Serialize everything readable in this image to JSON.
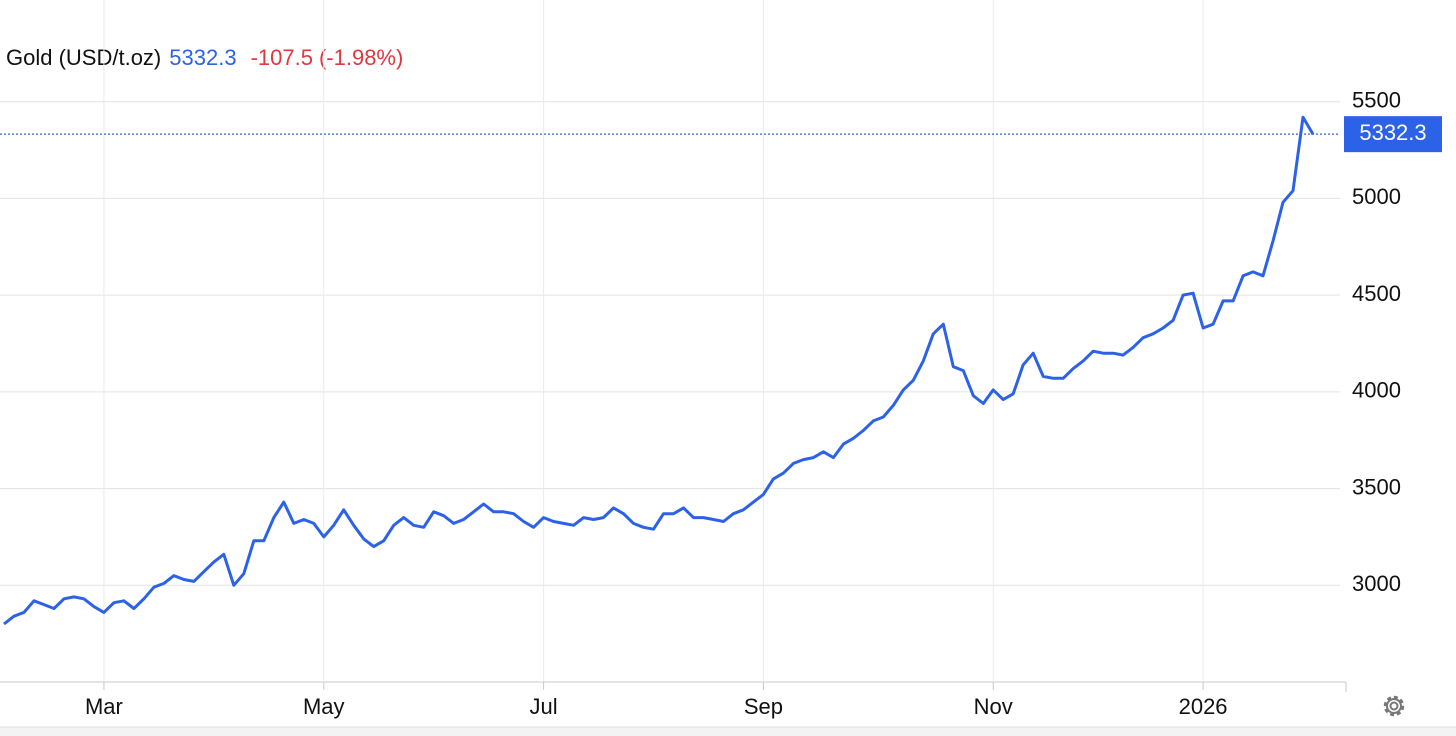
{
  "chart_data": {
    "type": "line",
    "title": "Gold (USD/t.oz)",
    "price": 5332.3,
    "change": -107.5,
    "change_pct": "(-1.98%)",
    "color": "#2b62e8",
    "price_color": "#2b62e8",
    "change_color": "#e0383e",
    "grid": true,
    "ylim": [
      2500,
      6000
    ],
    "yticks": [
      3000,
      3500,
      4000,
      4500,
      5000,
      5500
    ],
    "categories": [
      null,
      null,
      null,
      null,
      null,
      null,
      null,
      null,
      null,
      null,
      "Mar",
      null,
      null,
      null,
      null,
      null,
      null,
      null,
      null,
      null,
      null,
      null,
      null,
      null,
      null,
      null,
      null,
      null,
      null,
      null,
      null,
      null,
      "May",
      null,
      null,
      null,
      null,
      null,
      null,
      null,
      null,
      null,
      null,
      null,
      null,
      null,
      null,
      null,
      null,
      null,
      null,
      null,
      null,
      null,
      "Jul",
      null,
      null,
      null,
      null,
      null,
      null,
      null,
      null,
      null,
      null,
      null,
      null,
      null,
      null,
      null,
      null,
      null,
      null,
      null,
      null,
      null,
      "Sep",
      null,
      null,
      null,
      null,
      null,
      null,
      null,
      null,
      null,
      null,
      null,
      null,
      null,
      null,
      null,
      null,
      null,
      null,
      null,
      null,
      null,
      null,
      "Nov",
      null,
      null,
      null,
      null,
      null,
      null,
      null,
      null,
      null,
      null,
      null,
      null,
      null,
      null,
      null,
      null,
      null,
      null,
      null,
      null,
      "2026",
      null,
      null,
      null,
      null,
      null,
      null,
      null,
      null,
      null,
      null,
      null
    ],
    "values": [
      2800,
      2840,
      2860,
      2920,
      2900,
      2880,
      2930,
      2940,
      2930,
      2890,
      2860,
      2910,
      2920,
      2880,
      2930,
      2990,
      3010,
      3050,
      3030,
      3020,
      3070,
      3120,
      3160,
      3000,
      3060,
      3230,
      3230,
      3350,
      3430,
      3320,
      3340,
      3320,
      3250,
      3310,
      3390,
      3310,
      3240,
      3200,
      3230,
      3310,
      3350,
      3310,
      3300,
      3380,
      3360,
      3320,
      3340,
      3380,
      3420,
      3380,
      3380,
      3370,
      3330,
      3300,
      3350,
      3330,
      3320,
      3310,
      3350,
      3340,
      3350,
      3400,
      3370,
      3320,
      3300,
      3290,
      3370,
      3370,
      3400,
      3350,
      3350,
      3340,
      3330,
      3370,
      3390,
      3430,
      3470,
      3550,
      3580,
      3630,
      3650,
      3660,
      3690,
      3660,
      3730,
      3760,
      3800,
      3850,
      3870,
      3930,
      4010,
      4060,
      4160,
      4300,
      4350,
      4130,
      4110,
      3980,
      3940,
      4010,
      3960,
      3990,
      4140,
      4200,
      4080,
      4070,
      4070,
      4120,
      4160,
      4210,
      4200,
      4200,
      4190,
      4230,
      4280,
      4300,
      4330,
      4370,
      4500,
      4510,
      4330,
      4350,
      4470,
      4470,
      4600,
      4620,
      4600,
      4780,
      4980,
      5040,
      5420,
      5332.3
    ]
  }
}
